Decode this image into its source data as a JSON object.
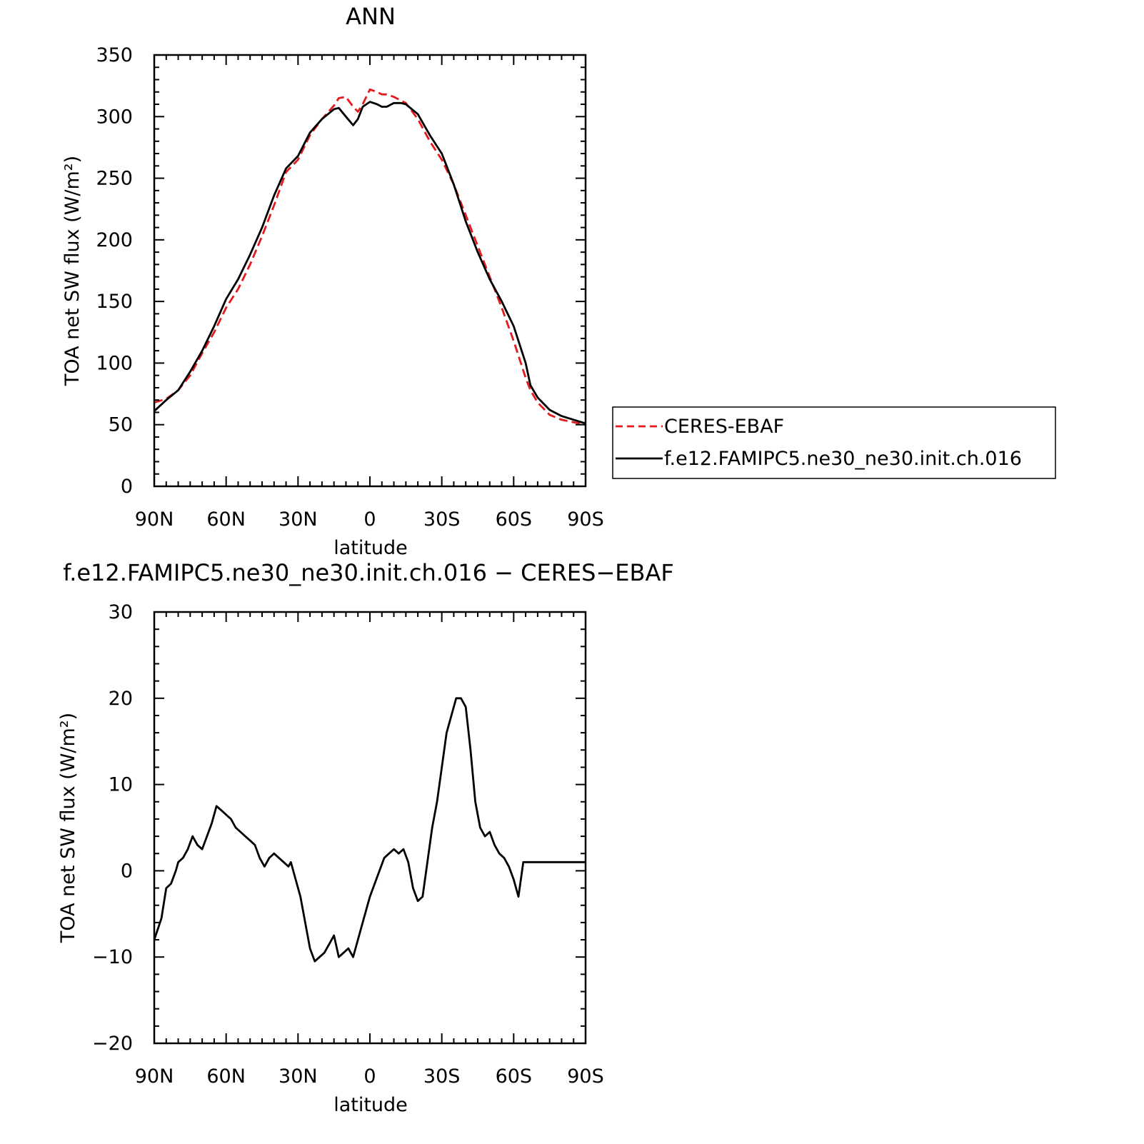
{
  "chart_data": [
    {
      "type": "line",
      "title": "ANN",
      "xlabel": "latitude",
      "ylabel": "TOA net SW flux (W/m²)",
      "xlim": [
        90,
        -90
      ],
      "ylim": [
        0,
        350
      ],
      "xticks": [
        90,
        60,
        30,
        0,
        -30,
        -60,
        -90
      ],
      "xtick_labels": [
        "90N",
        "60N",
        "30N",
        "0",
        "30S",
        "60S",
        "90S"
      ],
      "yticks": [
        0,
        50,
        100,
        150,
        200,
        250,
        300,
        350
      ],
      "ytick_labels": [
        "0",
        "50",
        "100",
        "150",
        "200",
        "250",
        "300",
        "350"
      ],
      "grid": false,
      "legend_position": "right",
      "series": [
        {
          "name": "CERES-EBAF",
          "color": "#e41a1c",
          "dash": "dashed",
          "x": [
            90,
            85,
            80,
            75,
            70,
            65,
            60,
            55,
            50,
            45,
            40,
            35,
            30,
            25,
            20,
            15,
            13,
            10,
            7,
            5,
            3,
            0,
            -3,
            -5,
            -7,
            -10,
            -13,
            -15,
            -20,
            -25,
            -30,
            -35,
            -40,
            -45,
            -50,
            -55,
            -60,
            -65,
            -67,
            -70,
            -75,
            -80,
            -85,
            -90
          ],
          "y": [
            68,
            71,
            78,
            90,
            108,
            125,
            145,
            160,
            180,
            203,
            228,
            255,
            265,
            285,
            298,
            309,
            315,
            316,
            308,
            304,
            310,
            322,
            320,
            318,
            318,
            316,
            313,
            311,
            298,
            280,
            265,
            245,
            220,
            195,
            170,
            145,
            118,
            88,
            78,
            68,
            58,
            54,
            52,
            50
          ]
        },
        {
          "name": "f.e12.FAMIPC5.ne30_ne30.init.ch.016",
          "color": "#000000",
          "dash": "solid",
          "x": [
            90,
            85,
            80,
            75,
            70,
            65,
            60,
            55,
            50,
            45,
            40,
            35,
            30,
            25,
            20,
            15,
            13,
            10,
            7,
            5,
            3,
            0,
            -3,
            -5,
            -7,
            -10,
            -13,
            -15,
            -20,
            -25,
            -30,
            -35,
            -40,
            -45,
            -50,
            -55,
            -60,
            -65,
            -67,
            -70,
            -75,
            -80,
            -85,
            -90
          ],
          "y": [
            61,
            70,
            78,
            93,
            110,
            130,
            152,
            168,
            188,
            210,
            236,
            258,
            268,
            287,
            298,
            306,
            307,
            300,
            293,
            298,
            308,
            312,
            310,
            308,
            308,
            311,
            311,
            310,
            302,
            285,
            270,
            245,
            215,
            190,
            168,
            150,
            130,
            100,
            82,
            72,
            62,
            57,
            54,
            51
          ]
        }
      ]
    },
    {
      "type": "line",
      "title": "f.e12.FAMIPC5.ne30_ne30.init.ch.016 − CERES−EBAF",
      "xlabel": "latitude",
      "ylabel": "TOA net SW flux (W/m²)",
      "xlim": [
        90,
        -90
      ],
      "ylim": [
        -20,
        30
      ],
      "xticks": [
        90,
        60,
        30,
        0,
        -30,
        -60,
        -90
      ],
      "xtick_labels": [
        "90N",
        "60N",
        "30N",
        "0",
        "30S",
        "60S",
        "90S"
      ],
      "yticks": [
        -20,
        -10,
        0,
        10,
        20,
        30
      ],
      "ytick_labels": [
        "−20",
        "−10",
        "0",
        "10",
        "20",
        "30"
      ],
      "grid": false,
      "series": [
        {
          "color": "#000000",
          "dash": "solid",
          "x": [
            90,
            87,
            85,
            83,
            81,
            80,
            78,
            76,
            74,
            72,
            70,
            68,
            66,
            64,
            62,
            60,
            58,
            56,
            54,
            52,
            50,
            48,
            46,
            44,
            42,
            40,
            38,
            36,
            34,
            33,
            31,
            29,
            27,
            25,
            23,
            21,
            19,
            17,
            15,
            13,
            11,
            9,
            7,
            5,
            3,
            1,
            0,
            -2,
            -4,
            -6,
            -8,
            -10,
            -12,
            -14,
            -16,
            -18,
            -20,
            -22,
            -24,
            -26,
            -28,
            -30,
            -32,
            -34,
            -36,
            -38,
            -40,
            -42,
            -44,
            -46,
            -48,
            -50,
            -52,
            -54,
            -56,
            -58,
            -60,
            -62,
            -63,
            -64,
            -65,
            -66,
            -68,
            -70,
            -72,
            -74,
            -76,
            -78,
            -80,
            -82,
            -84,
            -86,
            -88,
            -90
          ],
          "y": [
            -8,
            -5.5,
            -2,
            -1.5,
            0,
            1,
            1.5,
            2.5,
            4,
            3,
            2.5,
            4,
            5.5,
            7.5,
            7,
            6.5,
            6,
            5,
            4.5,
            4,
            3.5,
            3,
            1.5,
            0.5,
            1.5,
            2,
            1.5,
            1,
            0.5,
            1,
            -1,
            -3,
            -6,
            -9,
            -10.5,
            -10,
            -9.5,
            -8.5,
            -7.5,
            -10,
            -9.5,
            -9,
            -10,
            -8,
            -6,
            -4,
            -3,
            -1.5,
            0,
            1.5,
            2,
            2.5,
            2,
            2.5,
            1,
            -2,
            -3.5,
            -3,
            1,
            5,
            8,
            12,
            16,
            18,
            20,
            20,
            19,
            14,
            8,
            5,
            4,
            4.5,
            3,
            2,
            1.5,
            0.5,
            -1,
            -3,
            -1,
            1,
            1,
            1,
            1,
            1,
            1,
            1,
            1,
            1,
            1,
            1,
            1,
            1,
            1,
            1
          ]
        }
      ]
    }
  ]
}
